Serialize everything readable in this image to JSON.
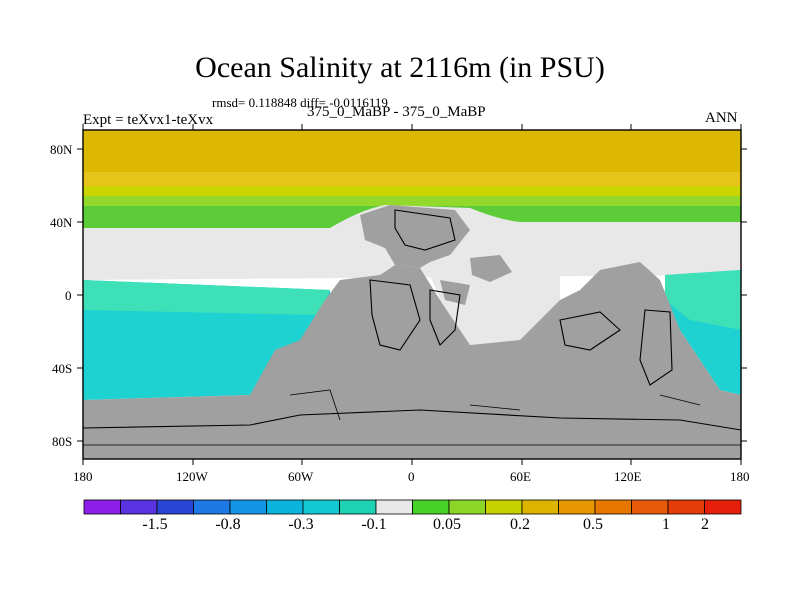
{
  "title": "Ocean Salinity at 2116m (in PSU)",
  "stats_line": "rmsd= 0.118848 diff= -0.0116119",
  "experiment_label": "Expt = teXvx1-teXvx",
  "subtitle": "375_0_MaBP - 375_0_MaBP",
  "season": "ANN",
  "colors": {
    "land": "#a0a0a0",
    "near_zero": "#e8e8e8",
    "north_bands": [
      "#dcb800",
      "#e5c51a",
      "#c9d400",
      "#92d92c",
      "#5ccd38"
    ],
    "south_ocean": "#1ed2d2",
    "south_ocean_light": "#3ee0b8"
  },
  "chart_data": {
    "type": "map",
    "projection": "cylindrical-equidistant",
    "lon_range": [
      -180,
      180
    ],
    "lat_range": [
      -90,
      90
    ],
    "x_ticks": [
      "180",
      "120W",
      "60W",
      "0",
      "60E",
      "120E",
      "180"
    ],
    "y_ticks": [
      "80N",
      "40N",
      "0",
      "40S",
      "80S"
    ],
    "y_tick_values": [
      80,
      40,
      0,
      -40,
      -80
    ],
    "colorbar": {
      "colors": [
        "#8c1ee8",
        "#5a32e0",
        "#2a46d6",
        "#1e78e6",
        "#1496e6",
        "#0ab4dc",
        "#14c8d2",
        "#1ed2b4",
        "#e8e8e8",
        "#46d228",
        "#8cd628",
        "#c8d200",
        "#dcb400",
        "#e69600",
        "#e67800",
        "#e65a0a",
        "#e63c0a",
        "#e61e0a"
      ],
      "labels": [
        "-1.5",
        "-0.8",
        "-0.3",
        "-0.1",
        "0.05",
        "0.2",
        "0.5",
        "1",
        "2"
      ]
    }
  }
}
